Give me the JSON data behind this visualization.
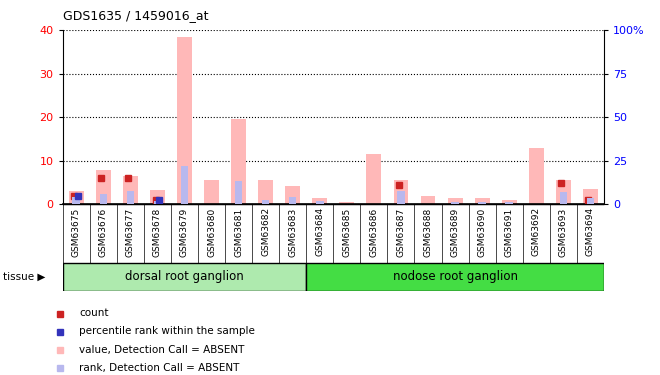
{
  "title": "GDS1635 / 1459016_at",
  "samples": [
    "GSM63675",
    "GSM63676",
    "GSM63677",
    "GSM63678",
    "GSM63679",
    "GSM63680",
    "GSM63681",
    "GSM63682",
    "GSM63683",
    "GSM63684",
    "GSM63685",
    "GSM63686",
    "GSM63687",
    "GSM63688",
    "GSM63689",
    "GSM63690",
    "GSM63691",
    "GSM63692",
    "GSM63693",
    "GSM63694"
  ],
  "value_absent": [
    3.0,
    8.0,
    6.5,
    3.2,
    38.5,
    5.5,
    19.5,
    5.5,
    4.2,
    1.5,
    0.5,
    11.5,
    5.5,
    2.0,
    1.5,
    1.5,
    1.0,
    13.0,
    5.5,
    3.5
  ],
  "rank_absent": [
    4.5,
    6.0,
    7.5,
    2.0,
    22.0,
    0.5,
    13.5,
    2.5,
    4.0,
    2.0,
    0.5,
    0.5,
    7.5,
    0.5,
    1.5,
    1.5,
    1.5,
    0.5,
    7.0,
    3.5
  ],
  "count": [
    2.0,
    6.0,
    6.0,
    1.0,
    0.0,
    0.0,
    0.0,
    0.0,
    0.0,
    0.0,
    0.0,
    0.0,
    4.5,
    0.0,
    0.0,
    0.0,
    0.0,
    0.0,
    5.0,
    1.0
  ],
  "pct_rank": [
    5.0,
    0.0,
    0.0,
    2.5,
    0.0,
    0.0,
    0.0,
    0.0,
    0.0,
    0.0,
    0.0,
    0.0,
    0.0,
    0.0,
    0.0,
    0.0,
    0.0,
    0.0,
    0.0,
    0.0
  ],
  "tissue_groups": [
    {
      "label": "dorsal root ganglion",
      "start": 0,
      "end": 9,
      "color": "#aeeaae"
    },
    {
      "label": "nodose root ganglion",
      "start": 9,
      "end": 20,
      "color": "#44dd44"
    }
  ],
  "ylim_left": [
    0,
    40
  ],
  "ylim_right": [
    0,
    100
  ],
  "yticks_left": [
    0,
    10,
    20,
    30,
    40
  ],
  "yticks_right": [
    0,
    25,
    50,
    75,
    100
  ],
  "color_count": "#cc2222",
  "color_pct_rank": "#3333bb",
  "color_value_absent": "#ffb8b8",
  "color_rank_absent": "#b8b8ee",
  "bg_plot": "#ffffff",
  "bg_xtick": "#d0d0d0",
  "legend_items": [
    "count",
    "percentile rank within the sample",
    "value, Detection Call = ABSENT",
    "rank, Detection Call = ABSENT"
  ]
}
